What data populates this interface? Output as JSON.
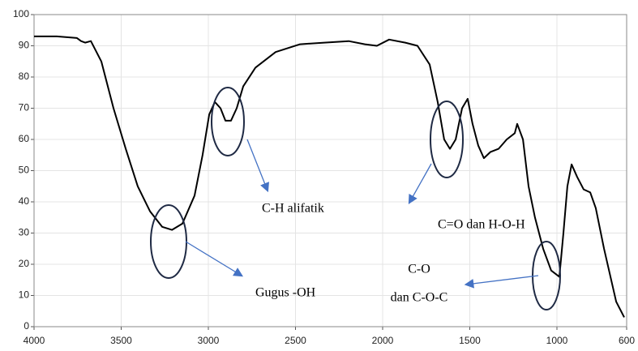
{
  "chart_data": {
    "type": "line",
    "x": [
      4000,
      3870,
      3754,
      3730,
      3707,
      3674,
      3614,
      3544,
      3474,
      3405,
      3335,
      3265,
      3209,
      3149,
      3079,
      3033,
      2995,
      2963,
      2930,
      2902,
      2870,
      2837,
      2800,
      2730,
      2614,
      2474,
      2335,
      2195,
      2102,
      2033,
      1963,
      1870,
      1800,
      1730,
      1684,
      1647,
      1614,
      1581,
      1544,
      1512,
      1484,
      1451,
      1419,
      1381,
      1335,
      1288,
      1242,
      1228,
      1195,
      1163,
      1126,
      1079,
      1033,
      986,
      963,
      940,
      916,
      884,
      847,
      809,
      777,
      730,
      660,
      614
    ],
    "values": [
      93,
      93,
      92.5,
      91.5,
      91,
      91.5,
      85,
      70,
      57,
      45,
      37,
      32,
      31,
      33,
      42,
      55,
      68,
      72,
      70,
      66,
      66,
      70,
      77,
      83,
      88,
      90.5,
      91,
      91.5,
      90.5,
      90,
      92,
      91,
      90,
      84,
      72,
      60,
      57,
      60,
      70,
      73,
      65,
      58,
      54,
      56,
      57,
      60,
      62,
      65,
      60,
      45,
      35,
      25,
      18,
      16,
      30,
      45,
      52,
      48,
      44,
      43,
      38,
      25,
      8,
      3
    ],
    "color": "#000000",
    "xlim": [
      4000,
      600
    ],
    "xticks": [
      4000,
      3500,
      3000,
      2500,
      2000,
      1500,
      1000,
      600
    ],
    "ylim": [
      0,
      100
    ],
    "yticks": [
      0,
      10,
      20,
      30,
      40,
      50,
      60,
      70,
      80,
      90,
      100
    ],
    "grid": true,
    "annotations": [
      "Gugus -OH",
      "C-H alifatik",
      "C=O dan H-O-H",
      "C-O",
      "dan C-O-C"
    ]
  }
}
